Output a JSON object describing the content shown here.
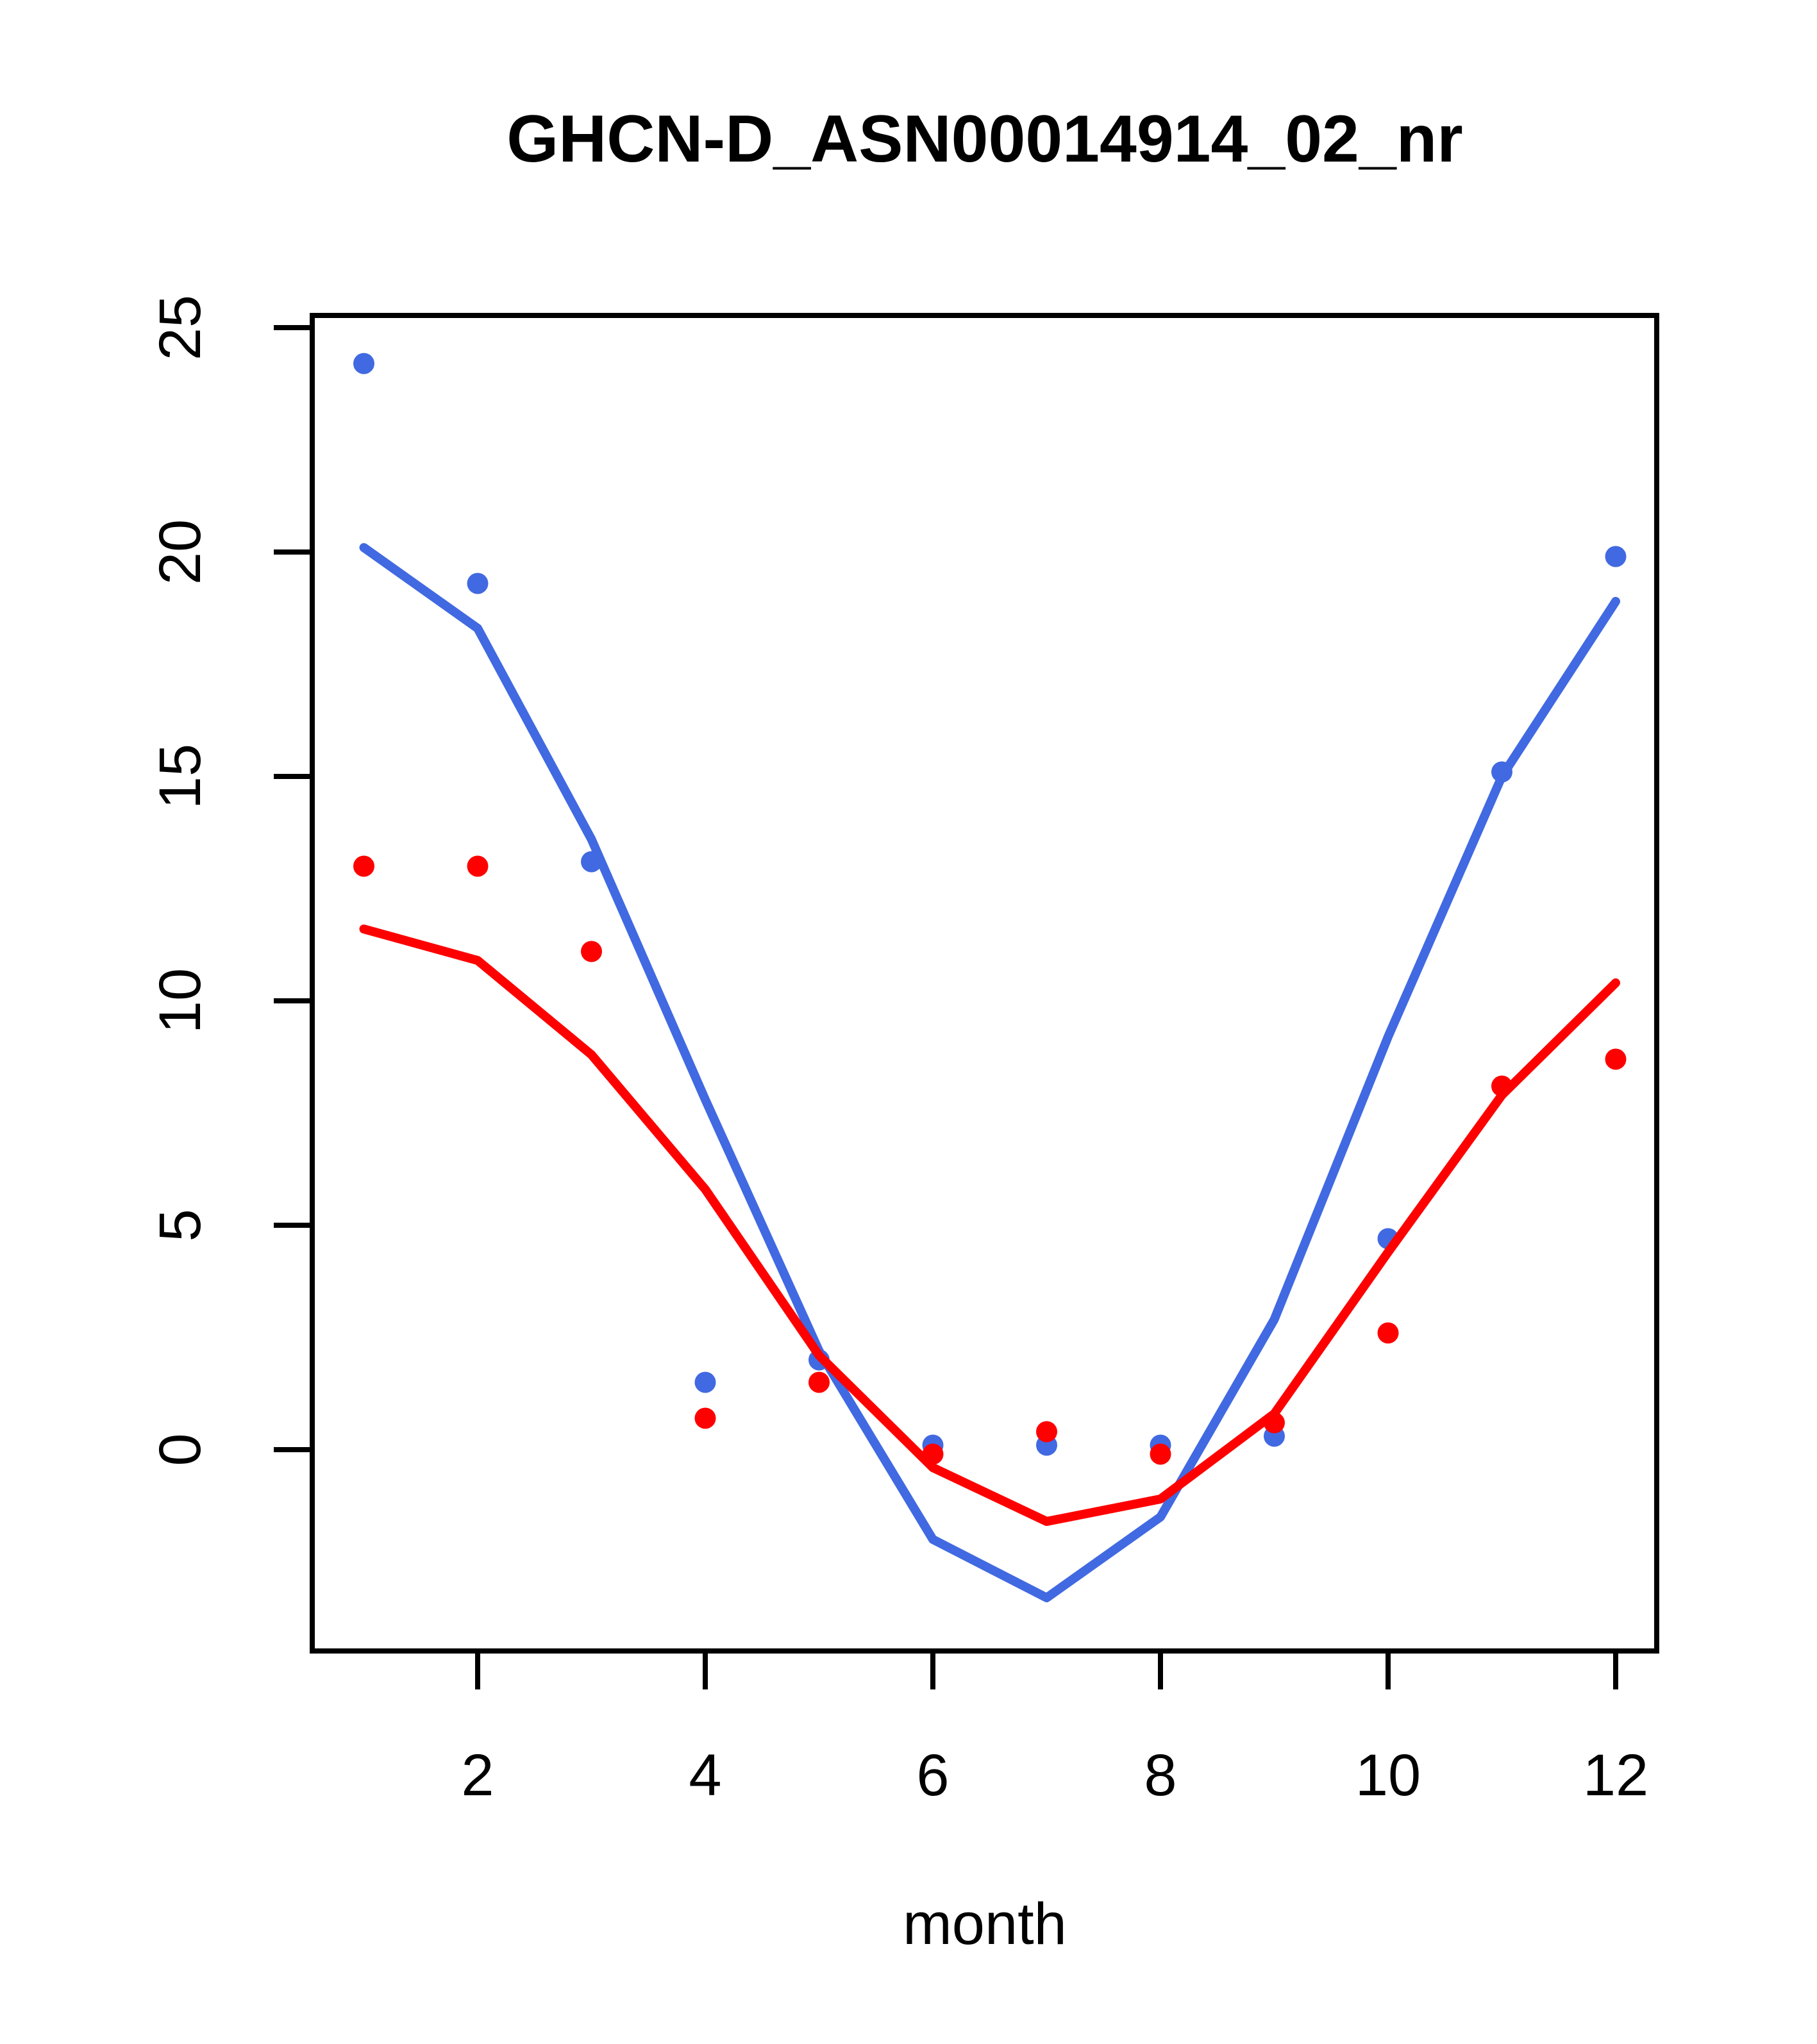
{
  "chart_data": {
    "type": "scatter",
    "title": "GHCN-D_ASN00014914_02_nr",
    "xlabel": "month",
    "ylabel": "",
    "x": [
      1,
      2,
      3,
      4,
      5,
      6,
      7,
      8,
      9,
      10,
      11,
      12
    ],
    "xticks": [
      2,
      4,
      6,
      8,
      10,
      12
    ],
    "yticks": [
      0,
      5,
      10,
      15,
      20,
      25
    ],
    "xlim": [
      0.56,
      12.44
    ],
    "ylim": [
      -4.5,
      25.3
    ],
    "grid": false,
    "legend_position": "none",
    "colors": {
      "blue_series": "#4169E1",
      "red_series": "#FF0000",
      "axis": "#000000"
    },
    "series": [
      {
        "name": "blue-observed-points",
        "kind": "points",
        "color": "#4169E1",
        "values": [
          24.2,
          19.3,
          13.1,
          1.5,
          2.0,
          0.1,
          0.1,
          0.1,
          0.3,
          4.7,
          15.1,
          19.9
        ]
      },
      {
        "name": "blue-fitted-line",
        "kind": "line",
        "color": "#4169E1",
        "values": [
          20.1,
          18.3,
          13.6,
          7.8,
          2.2,
          -2.0,
          -3.3,
          -1.5,
          2.9,
          9.2,
          15.0,
          18.9
        ]
      },
      {
        "name": "red-observed-points",
        "kind": "points",
        "color": "#FF0000",
        "values": [
          13.0,
          13.0,
          11.1,
          0.7,
          1.5,
          -0.1,
          0.4,
          -0.1,
          0.6,
          2.6,
          8.1,
          8.7
        ]
      },
      {
        "name": "red-fitted-line",
        "kind": "line",
        "color": "#FF0000",
        "values": [
          11.6,
          10.9,
          8.8,
          5.8,
          2.1,
          -0.4,
          -1.6,
          -1.1,
          0.8,
          4.4,
          7.9,
          10.4
        ]
      }
    ]
  }
}
